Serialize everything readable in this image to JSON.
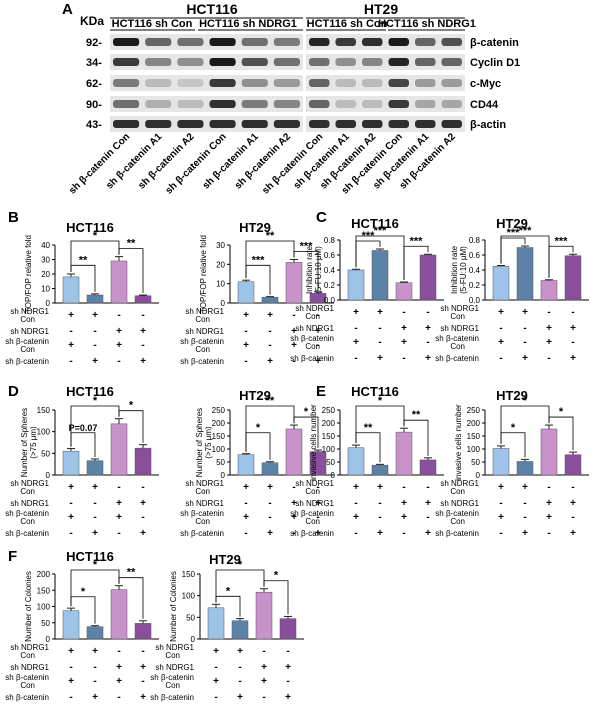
{
  "panel_a": {
    "letter": "A",
    "kda_label": "KDa",
    "cell_lines": [
      "HCT116",
      "HT29"
    ],
    "group_labels": [
      "HCT116 sh Con",
      "HCT116 sh NDRG1",
      "HCT116 sh Con",
      "HCT116 sh NDRG1"
    ],
    "markers": [
      "92",
      "34",
      "62",
      "90",
      "43"
    ],
    "proteins": [
      "β-catenin",
      "Cyclin D1",
      "c-Myc",
      "CD44",
      "β-actin"
    ],
    "lanes": [
      "sh β-catenin Con",
      "sh β-catenin A1",
      "sh β-catenin A2",
      "sh β-catenin Con",
      "sh β-catenin A1",
      "sh β-catenin A2",
      "sh β-catenin Con",
      "sh β-catenin A1",
      "sh β-catenin A2",
      "sh β-catenin Con",
      "sh β-catenin A1",
      "sh β-catenin A2"
    ]
  },
  "conditions": {
    "row_labels": [
      "sh NDRG1 Con",
      "sh NDRG1",
      "sh β-catenin Con",
      "sh β-catenin"
    ],
    "signs": [
      [
        "+",
        "+",
        "-",
        "-"
      ],
      [
        "-",
        "-",
        "+",
        "+"
      ],
      [
        "+",
        "-",
        "+",
        "-"
      ],
      [
        "-",
        "+",
        "-",
        "+"
      ]
    ]
  },
  "colors": {
    "light_blue": "#9ec3e8",
    "dark_blue": "#5d82a8",
    "pink": "#c992cb",
    "purple": "#8a4f9a",
    "error": "#222222"
  },
  "chart_data": [
    {
      "panel": "B",
      "type": "bar",
      "title": "HCT116",
      "ylabel": "TOP/FOP relative fold",
      "ylim": [
        0,
        40
      ],
      "yticks": [
        "0",
        "10",
        "20",
        "30",
        "40"
      ],
      "values": [
        18,
        5.5,
        29,
        5
      ],
      "errors": [
        2,
        0.8,
        3,
        0.5
      ],
      "brackets": [
        {
          "from": 0,
          "to": 1,
          "label": "**"
        },
        {
          "from": 0,
          "to": 2,
          "label": "*"
        },
        {
          "from": 2,
          "to": 3,
          "label": "**"
        }
      ]
    },
    {
      "panel": "B",
      "type": "bar",
      "title": "HT29",
      "ylabel": "TOP/FOP relative fold",
      "ylim": [
        0,
        30
      ],
      "yticks": [
        "0",
        "10",
        "20",
        "30"
      ],
      "values": [
        11,
        3,
        21,
        5
      ],
      "errors": [
        0.8,
        0.3,
        1.5,
        0.8
      ],
      "brackets": [
        {
          "from": 0,
          "to": 1,
          "label": "***"
        },
        {
          "from": 0,
          "to": 2,
          "label": "**"
        },
        {
          "from": 2,
          "to": 3,
          "label": "***"
        }
      ]
    },
    {
      "panel": "C",
      "type": "bar",
      "title": "HCT116",
      "ylabel": "Inhibition rate (5-FU:10 μM)",
      "ylim": [
        0,
        0.8
      ],
      "yticks": [
        "0.0",
        "0.2",
        "0.4",
        "0.6",
        "0.8"
      ],
      "values": [
        0.4,
        0.66,
        0.23,
        0.6
      ],
      "errors": [
        0.01,
        0.02,
        0.01,
        0.01
      ],
      "brackets": [
        {
          "from": 0,
          "to": 1,
          "label": "***"
        },
        {
          "from": 0,
          "to": 2,
          "label": "***"
        },
        {
          "from": 2,
          "to": 3,
          "label": "***"
        }
      ]
    },
    {
      "panel": "C",
      "type": "bar",
      "title": "HT29",
      "ylabel": "Inhibition rate (5-FU:10 μM)",
      "ylim": [
        0,
        0.8
      ],
      "yticks": [
        "0.0",
        "0.2",
        "0.4",
        "0.6",
        "0.8"
      ],
      "values": [
        0.45,
        0.7,
        0.26,
        0.59
      ],
      "errors": [
        0.01,
        0.02,
        0.01,
        0.02
      ],
      "brackets": [
        {
          "from": 0,
          "to": 1,
          "label": "***"
        },
        {
          "from": 0,
          "to": 2,
          "label": "***"
        },
        {
          "from": 2,
          "to": 3,
          "label": "***"
        }
      ]
    },
    {
      "panel": "D",
      "type": "bar",
      "title": "HCT116",
      "ylabel": "Number of Spheres (>75 μm)",
      "ylim": [
        0,
        150
      ],
      "yticks": [
        "0",
        "50",
        "100",
        "150"
      ],
      "values": [
        55,
        33,
        118,
        62
      ],
      "errors": [
        6,
        4,
        12,
        8
      ],
      "brackets": [
        {
          "from": 0,
          "to": 1,
          "label": "P=0.07"
        },
        {
          "from": 0,
          "to": 2,
          "label": "*"
        },
        {
          "from": 2,
          "to": 3,
          "label": "*"
        }
      ]
    },
    {
      "panel": "D",
      "type": "bar",
      "title": "HT29",
      "ylabel": "Number of Spheres (>75 μm)",
      "ylim": [
        0,
        250
      ],
      "yticks": [
        "0",
        "50",
        "100",
        "150",
        "200",
        "250"
      ],
      "values": [
        78,
        47,
        177,
        90
      ],
      "errors": [
        4,
        4,
        15,
        6
      ],
      "brackets": [
        {
          "from": 0,
          "to": 1,
          "label": "*"
        },
        {
          "from": 0,
          "to": 2,
          "label": "**"
        },
        {
          "from": 2,
          "to": 3,
          "label": "*"
        }
      ]
    },
    {
      "panel": "E",
      "type": "bar",
      "title": "HCT116",
      "ylabel": "invasive cells number",
      "ylim": [
        0,
        250
      ],
      "yticks": [
        "0",
        "50",
        "100",
        "150",
        "200",
        "250"
      ],
      "values": [
        105,
        38,
        165,
        58
      ],
      "errors": [
        10,
        3,
        15,
        8
      ],
      "brackets": [
        {
          "from": 0,
          "to": 1,
          "label": "**"
        },
        {
          "from": 0,
          "to": 2,
          "label": "*"
        },
        {
          "from": 2,
          "to": 3,
          "label": "**"
        }
      ]
    },
    {
      "panel": "E",
      "type": "bar",
      "title": "HT29",
      "ylabel": "invasive cells number",
      "ylim": [
        0,
        250
      ],
      "yticks": [
        "0",
        "50",
        "100",
        "150",
        "200",
        "250"
      ],
      "values": [
        102,
        52,
        177,
        78
      ],
      "errors": [
        10,
        8,
        15,
        10
      ],
      "brackets": [
        {
          "from": 0,
          "to": 1,
          "label": "*"
        },
        {
          "from": 0,
          "to": 2,
          "label": "*"
        },
        {
          "from": 2,
          "to": 3,
          "label": "*"
        }
      ]
    },
    {
      "panel": "F",
      "type": "bar",
      "title": "HCT116",
      "ylabel": "Number of Colonies",
      "ylim": [
        0,
        200
      ],
      "yticks": [
        "0",
        "50",
        "100",
        "150",
        "200"
      ],
      "values": [
        87,
        38,
        152,
        48
      ],
      "errors": [
        8,
        3,
        12,
        8
      ],
      "brackets": [
        {
          "from": 0,
          "to": 1,
          "label": "*"
        },
        {
          "from": 0,
          "to": 2,
          "label": "*"
        },
        {
          "from": 2,
          "to": 3,
          "label": "**"
        }
      ]
    },
    {
      "panel": "F",
      "type": "bar",
      "title": "HT29",
      "ylabel": "Number of Colonies",
      "ylim": [
        0,
        150
      ],
      "yticks": [
        "0",
        "50",
        "100",
        "150"
      ],
      "values": [
        72,
        42,
        108,
        47
      ],
      "errors": [
        8,
        5,
        8,
        5
      ],
      "brackets": [
        {
          "from": 0,
          "to": 1,
          "label": "*"
        },
        {
          "from": 0,
          "to": 2,
          "label": "*"
        },
        {
          "from": 2,
          "to": 3,
          "label": "*"
        }
      ]
    }
  ],
  "panel_letters": [
    "B",
    "C",
    "D",
    "E",
    "F"
  ]
}
